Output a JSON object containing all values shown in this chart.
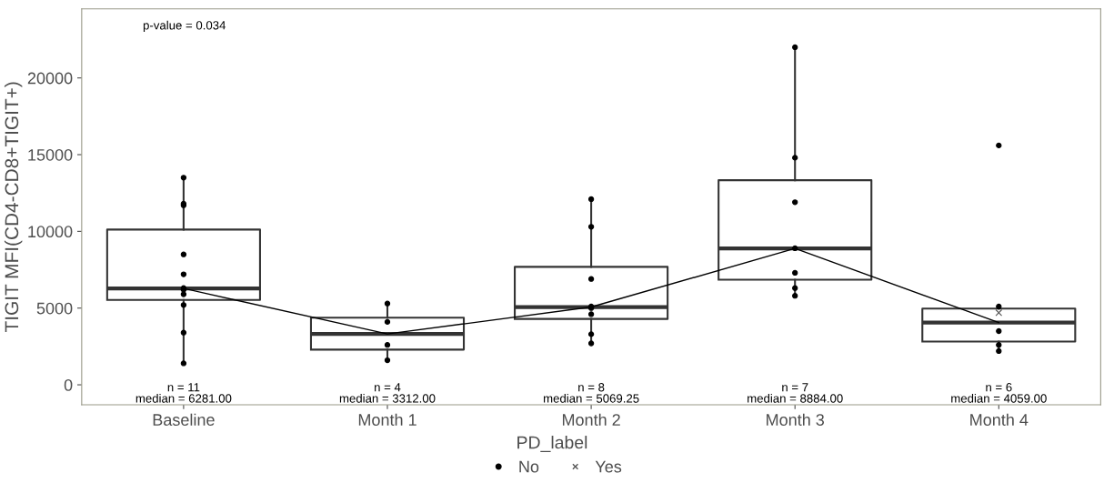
{
  "chart_data": {
    "type": "box",
    "categories": [
      "Baseline",
      "Month 1",
      "Month 2",
      "Month 3",
      "Month 4"
    ],
    "ylabel": "TIGIT MFI(CD4-CD8+TIGIT+)",
    "legend_title": "PD_label",
    "boxes": [
      {
        "low": 1419,
        "q1": 5527,
        "median": 6281,
        "q3": 10120,
        "high": 13455
      },
      {
        "low": 1617,
        "q1": 2295,
        "median": 3312,
        "q3": 4371,
        "high": 5329
      },
      {
        "low": 2735,
        "q1": 4293,
        "median": 5069,
        "q3": 7685,
        "high": 12096
      },
      {
        "low": 5788,
        "q1": 6846,
        "median": 8884,
        "q3": 13335,
        "high": 22036
      },
      {
        "low": 2215,
        "q1": 2814,
        "median": 4059,
        "q3": 4970,
        "high": 5070
      }
    ],
    "series": [
      {
        "type": "line",
        "color": "#000000",
        "x": [
          "Baseline",
          "Month 1",
          "Month 2",
          "Month 3",
          "Month 4"
        ],
        "values": [
          6281,
          3312,
          5069,
          8884,
          4059
        ],
        "marker": "none"
      },
      {
        "type": "scatter",
        "name": "No",
        "color": "#000000",
        "marker": "circle",
        "x": [
          "Baseline",
          "Baseline",
          "Baseline",
          "Baseline",
          "Baseline",
          "Baseline",
          "Baseline",
          "Baseline",
          "Baseline",
          "Baseline",
          "Baseline",
          "Month 1",
          "Month 1",
          "Month 1",
          "Month 1",
          "Month 2",
          "Month 2",
          "Month 2",
          "Month 2",
          "Month 2",
          "Month 2",
          "Month 2",
          "Month 2",
          "Month 3",
          "Month 3",
          "Month 3",
          "Month 3",
          "Month 3",
          "Month 3",
          "Month 3",
          "Month 4",
          "Month 4",
          "Month 4",
          "Month 4",
          "Month 4"
        ],
        "values": [
          11700,
          13500,
          11800,
          8500,
          7200,
          6300,
          6200,
          5900,
          5200,
          3400,
          1400,
          5300,
          2600,
          4100,
          1600,
          12100,
          10300,
          6900,
          5000,
          4600,
          5100,
          3300,
          2700,
          22000,
          14800,
          11900,
          8900,
          7300,
          6300,
          5800,
          15600,
          5100,
          3500,
          2600,
          2200
        ]
      },
      {
        "type": "scatter",
        "name": "Yes",
        "color": "#555555",
        "marker": "cross",
        "x": [
          "Month 4"
        ],
        "values": [
          4700
        ]
      }
    ],
    "annotations": [
      {
        "text": "p-value = 0.034"
      },
      "n = 11\nmedian = 6281.00",
      "n = 4\nmedian = 3312.00",
      "n = 8\nmedian = 5069.25",
      "n = 7\nmedian = 8884.00",
      "n = 6\nmedian = 4059.00"
    ],
    "ylim": [
      -1300,
      24500
    ],
    "yticks": [
      0,
      5000,
      10000,
      15000,
      20000
    ],
    "grid": false,
    "legend": "bottom"
  }
}
